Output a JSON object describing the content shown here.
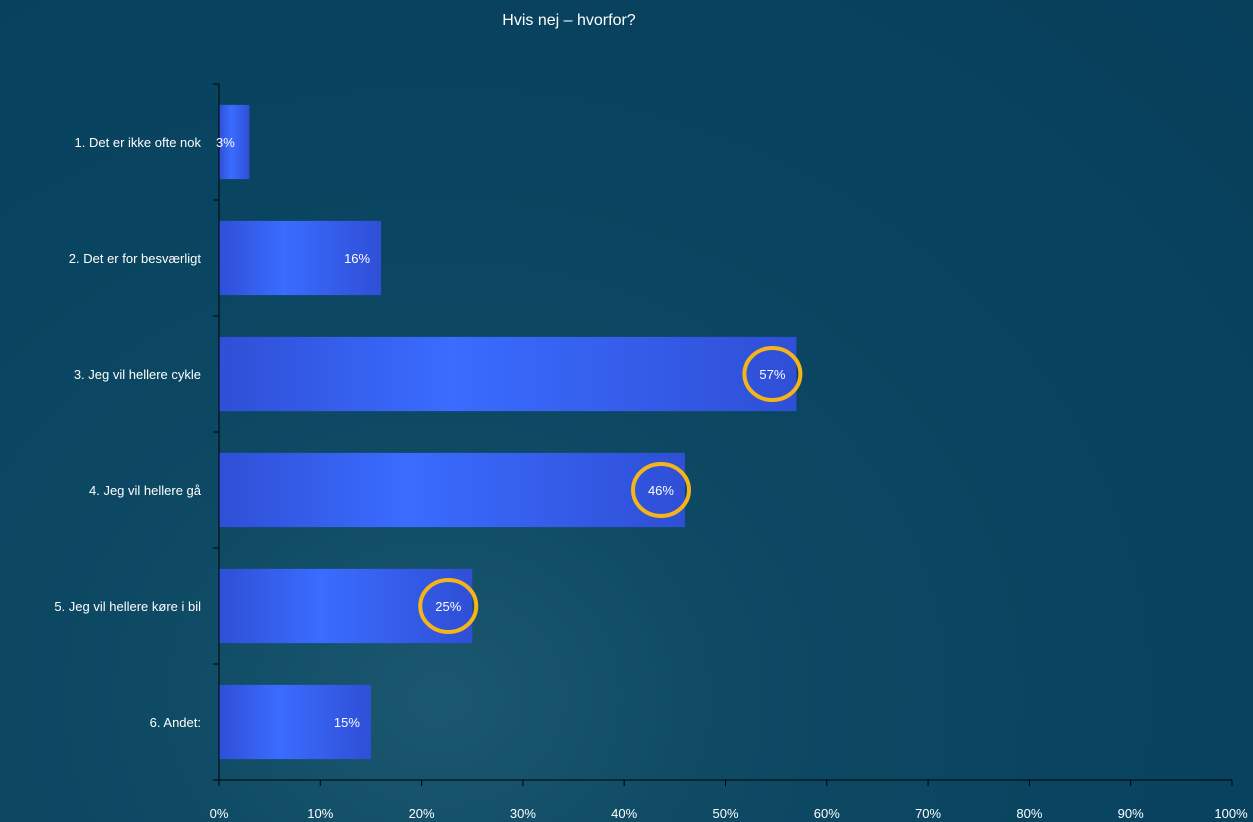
{
  "chart_data": {
    "type": "bar",
    "orientation": "horizontal",
    "title": "Hvis nej – hvorfor?",
    "xlabel": "",
    "ylabel": "",
    "categories": [
      "1. Det er ikke ofte nok",
      "2. Det er for besværligt",
      "3. Jeg vil hellere cykle",
      "4. Jeg vil hellere gå",
      "5. Jeg vil hellere køre i bil",
      "6. Andet:"
    ],
    "values": [
      3,
      16,
      57,
      46,
      25,
      15
    ],
    "data_labels": [
      "3%",
      "16%",
      "57%",
      "46%",
      "25%",
      "15%"
    ],
    "highlighted": [
      false,
      false,
      true,
      true,
      true,
      false
    ],
    "xlim": [
      0,
      100
    ],
    "x_ticks": [
      "0%",
      "10%",
      "20%",
      "30%",
      "40%",
      "50%",
      "60%",
      "70%",
      "80%",
      "90%",
      "100%"
    ],
    "grid": false,
    "legend": "none",
    "colors": {
      "bar_edge": "#2f4fd6",
      "bar_center": "#3a6cff",
      "highlight_ring": "#f5b518",
      "axis": "#000000",
      "text": "#ffffff"
    }
  }
}
